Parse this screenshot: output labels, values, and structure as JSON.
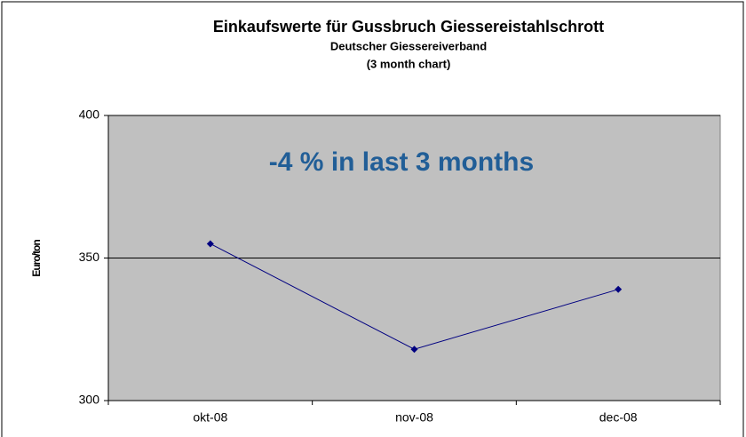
{
  "chart_data": {
    "type": "line",
    "title": "Einkaufswerte für Gussbruch Giessereistahlschrott",
    "subtitle": [
      "Deutscher Giessereiverband",
      "(3 month chart)"
    ],
    "ylabel": "Euro/ton",
    "annotation": "-4 % in last 3 months",
    "categories": [
      "okt-08",
      "nov-08",
      "dec-08"
    ],
    "values": [
      355,
      318,
      339
    ],
    "color": "#000080",
    "ylim": [
      300,
      400
    ],
    "yticks": [
      300,
      350,
      400
    ],
    "grid": true
  }
}
